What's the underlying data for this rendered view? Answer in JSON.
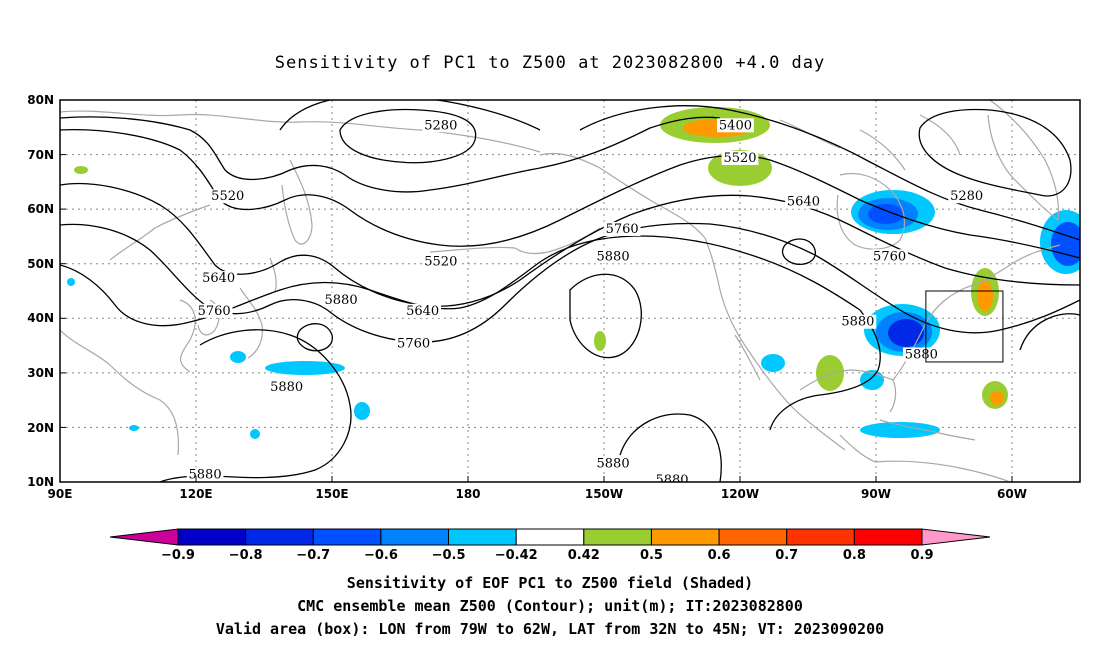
{
  "title": "Sensitivity of PC1 to Z500 at 2023082800 +4.0 day",
  "axes": {
    "lat_labels": [
      "80N",
      "70N",
      "60N",
      "50N",
      "40N",
      "30N",
      "20N",
      "10N"
    ],
    "lon_labels": [
      "90E",
      "120E",
      "150E",
      "180",
      "150W",
      "120W",
      "90W",
      "60W"
    ]
  },
  "contour_labels": [
    {
      "text": "5280",
      "lon": 174,
      "lat": 75
    },
    {
      "text": "5400",
      "lon": -121,
      "lat": 75
    },
    {
      "text": "5520",
      "lon": -120,
      "lat": 69
    },
    {
      "text": "5280",
      "lon": -70,
      "lat": 62
    },
    {
      "text": "5520",
      "lon": 127,
      "lat": 62
    },
    {
      "text": "5640",
      "lon": -106,
      "lat": 61
    },
    {
      "text": "5760",
      "lon": -146,
      "lat": 56
    },
    {
      "text": "5880",
      "lon": -148,
      "lat": 51
    },
    {
      "text": "5520",
      "lon": 174,
      "lat": 50
    },
    {
      "text": "5760",
      "lon": -87,
      "lat": 51
    },
    {
      "text": "5640",
      "lon": 125,
      "lat": 47
    },
    {
      "text": "5880",
      "lon": 152,
      "lat": 43
    },
    {
      "text": "5880",
      "lon": -94,
      "lat": 39
    },
    {
      "text": "5760",
      "lon": 124,
      "lat": 41
    },
    {
      "text": "5640",
      "lon": 170,
      "lat": 41
    },
    {
      "text": "5760",
      "lon": 168,
      "lat": 35
    },
    {
      "text": "5880",
      "lon": -80,
      "lat": 33
    },
    {
      "text": "5880",
      "lon": 140,
      "lat": 27
    },
    {
      "text": "5880",
      "lon": -148,
      "lat": 13
    },
    {
      "text": "5880",
      "lon": -135,
      "lat": 10
    },
    {
      "text": "5880",
      "lon": 122,
      "lat": 11
    }
  ],
  "valid_box": {
    "lon_west": -79,
    "lon_east": -62,
    "lat_south": 32,
    "lat_north": 45
  },
  "colorbar": {
    "labels": [
      "−0.9",
      "−0.8",
      "−0.7",
      "−0.6",
      "−0.5",
      "−0.42",
      "0.42",
      "0.5",
      "0.6",
      "0.7",
      "0.8",
      "0.9"
    ],
    "colors": [
      "#0000c8",
      "#0028e6",
      "#0050ff",
      "#0082ff",
      "#00c8ff",
      "#ffffff",
      "#9acd32",
      "#ff9900",
      "#ff6600",
      "#ff3300",
      "#ff0000"
    ],
    "low_end_color": "#cc0099",
    "high_end_color": "#ff99cc"
  },
  "captions": {
    "line1": "Sensitivity of EOF PC1 to Z500 field (Shaded)",
    "line2": "CMC ensemble mean Z500 (Contour); unit(m); IT:2023082800",
    "line3": "Valid area (box): LON from 79W to 62W, LAT from 32N to 45N; VT: 2023090200"
  }
}
